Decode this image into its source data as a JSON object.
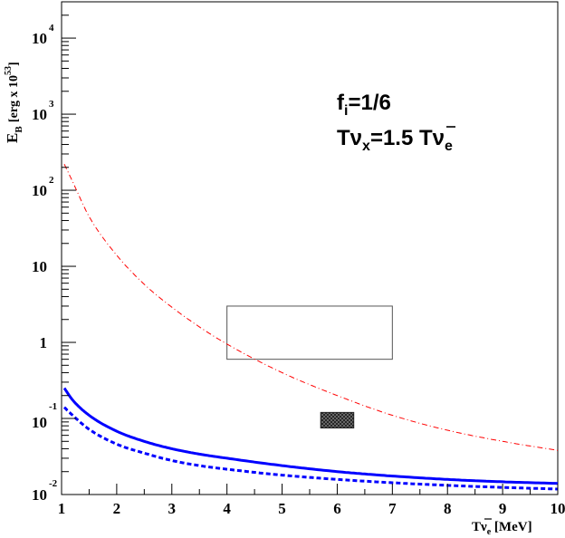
{
  "chart_data": {
    "type": "line",
    "xlabel": {
      "main": "T",
      "nu": "ν",
      "sub": "e",
      "unit": "[MeV]"
    },
    "ylabel": {
      "main": "E",
      "sub": "B",
      "unit": "[erg x 10",
      "exp": "53",
      "close": "]"
    },
    "xlim": [
      1,
      10
    ],
    "ylim": [
      0.01,
      30000
    ],
    "yscale": "log",
    "grid": false,
    "x_ticks": [
      "1",
      "2",
      "3",
      "4",
      "5",
      "6",
      "7",
      "8",
      "9",
      "10"
    ],
    "y_ticks": [
      {
        "value": 10000,
        "base": "10",
        "exp": "4"
      },
      {
        "value": 1000,
        "base": "10",
        "exp": "3"
      },
      {
        "value": 100,
        "base": "10",
        "exp": "2"
      },
      {
        "value": 10,
        "base": "10",
        "exp": ""
      },
      {
        "value": 1,
        "base": "1",
        "exp": ""
      },
      {
        "value": 0.1,
        "base": "10",
        "exp": "-1"
      },
      {
        "value": 0.01,
        "base": "10",
        "exp": "-2"
      }
    ],
    "annotations": {
      "line1": {
        "main": "f",
        "sub": "i",
        "rest": "=1/6"
      },
      "line2": {
        "t1": "T",
        "nu1": "ν",
        "sub1": "x",
        "mid": "=1.5 T",
        "nu2": "ν",
        "sub2": "e"
      }
    },
    "series": [
      {
        "style": "dash-dot",
        "color": "#ff0000",
        "x": [
          1.05,
          1.2,
          1.5,
          2,
          2.5,
          3,
          3.5,
          4,
          5,
          6,
          7,
          8,
          9,
          10
        ],
        "y": [
          220,
          130,
          45,
          14,
          5.8,
          2.9,
          1.6,
          0.95,
          0.4,
          0.2,
          0.11,
          0.07,
          0.05,
          0.038
        ]
      },
      {
        "style": "solid",
        "color": "#0000ff",
        "x": [
          1.05,
          1.2,
          1.5,
          2,
          2.5,
          3,
          3.5,
          4,
          5,
          6,
          7,
          8,
          9,
          10
        ],
        "y": [
          0.25,
          0.175,
          0.11,
          0.068,
          0.05,
          0.04,
          0.034,
          0.03,
          0.024,
          0.02,
          0.0175,
          0.0158,
          0.0147,
          0.014
        ]
      },
      {
        "style": "dashed",
        "color": "#0000ff",
        "x": [
          1.05,
          1.2,
          1.5,
          2,
          2.5,
          3,
          3.5,
          4,
          5,
          6,
          7,
          8,
          9,
          10
        ],
        "y": [
          0.14,
          0.11,
          0.072,
          0.046,
          0.035,
          0.028,
          0.024,
          0.0215,
          0.018,
          0.0158,
          0.0143,
          0.0132,
          0.0124,
          0.0118
        ]
      }
    ],
    "regions": [
      {
        "style": "open-box",
        "x": [
          4,
          7
        ],
        "y": [
          0.6,
          3
        ]
      },
      {
        "style": "hatched-box",
        "x": [
          5.7,
          6.3
        ],
        "y": [
          0.075,
          0.12
        ]
      }
    ]
  }
}
